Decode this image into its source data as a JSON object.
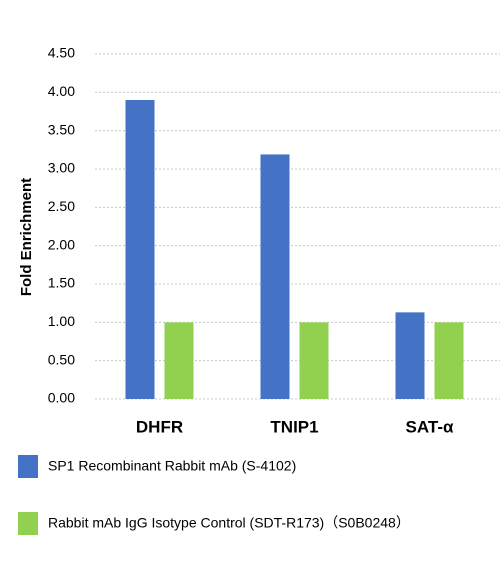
{
  "chart_data": {
    "type": "bar",
    "y_label": "Fold Enrichment",
    "categories": [
      "DHFR",
      "TNIP1",
      "SAT-α"
    ],
    "series": [
      {
        "name": "SP1 Recombinant Rabbit mAb (S-4102)",
        "color": "#4472c4",
        "values": [
          3.9,
          3.19,
          1.13
        ]
      },
      {
        "name": "Rabbit mAb IgG Isotype Control (SDT-R173)（S0B0248）",
        "color": "#92d050",
        "values": [
          1.0,
          1.0,
          1.0
        ]
      }
    ],
    "ylim": [
      0,
      4.5
    ],
    "yticks": [
      {
        "value": 0,
        "label": "0.00"
      },
      {
        "value": 0.5,
        "label": "0.50"
      },
      {
        "value": 1,
        "label": "1.00"
      },
      {
        "value": 1.5,
        "label": "1.50"
      },
      {
        "value": 2,
        "label": "2.00"
      },
      {
        "value": 2.5,
        "label": "2.50"
      },
      {
        "value": 3,
        "label": "3.00"
      },
      {
        "value": 3.5,
        "label": "3.50"
      },
      {
        "value": 4,
        "label": "4.00"
      },
      {
        "value": 4.5,
        "label": "4.50"
      }
    ],
    "grid": true
  }
}
